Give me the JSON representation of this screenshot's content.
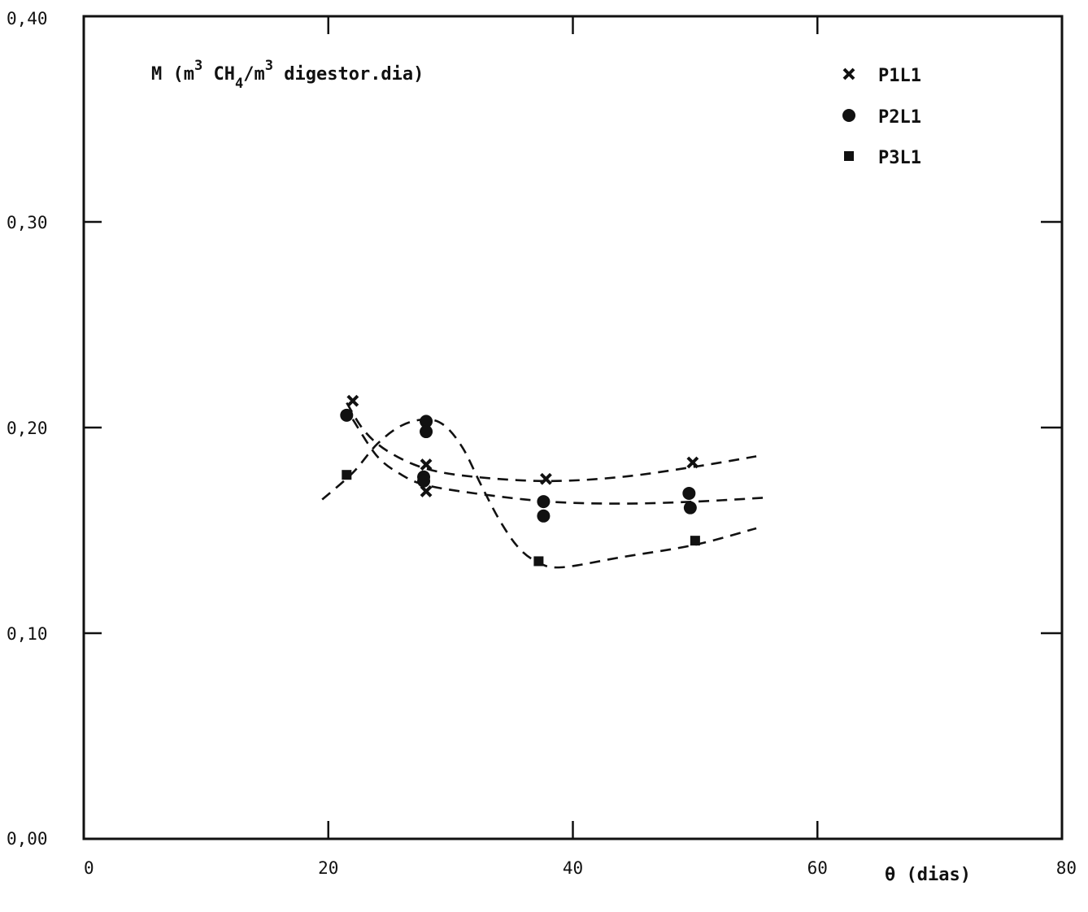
{
  "chart_data": {
    "type": "scatter",
    "title": "",
    "ylabel": "M (m3 CH4/m3 digestor.dia)",
    "ylabel_parts": {
      "prefix": "M (m",
      "sup1": "3",
      "mid": " CH",
      "sub": "4",
      "slash": "/m",
      "sup2": "3",
      "suffix": " digestor.dia)"
    },
    "xlabel": "θ (dias)",
    "xlim": [
      0,
      80
    ],
    "ylim": [
      0.0,
      0.4
    ],
    "x_ticks": [
      0,
      20,
      40,
      60,
      80
    ],
    "x_tick_labels": [
      "0",
      "20",
      "40",
      "60",
      "80"
    ],
    "y_ticks": [
      0.0,
      0.1,
      0.2,
      0.3,
      0.4
    ],
    "y_tick_labels": [
      "0,00",
      "0,10",
      "0,20",
      "0,30",
      "0,40"
    ],
    "grid": false,
    "legend_position": "top-right",
    "series": [
      {
        "name": "P1L1",
        "marker": "x",
        "color": "#111111",
        "points": [
          [
            22.0,
            0.213
          ],
          [
            28.0,
            0.182
          ],
          [
            28.0,
            0.169
          ],
          [
            37.8,
            0.175
          ],
          [
            49.8,
            0.183
          ]
        ],
        "trend": [
          [
            21.5,
            0.212
          ],
          [
            23,
            0.198
          ],
          [
            25,
            0.188
          ],
          [
            28,
            0.18
          ],
          [
            32,
            0.176
          ],
          [
            38,
            0.174
          ],
          [
            44,
            0.176
          ],
          [
            50,
            0.181
          ],
          [
            55,
            0.186
          ]
        ]
      },
      {
        "name": "P2L1",
        "marker": "circle",
        "color": "#111111",
        "points": [
          [
            21.5,
            0.206
          ],
          [
            28.0,
            0.203
          ],
          [
            28.0,
            0.198
          ],
          [
            27.8,
            0.176
          ],
          [
            27.8,
            0.174
          ],
          [
            37.6,
            0.164
          ],
          [
            37.6,
            0.157
          ],
          [
            49.5,
            0.168
          ],
          [
            49.6,
            0.161
          ]
        ],
        "trend": [
          [
            22,
            0.204
          ],
          [
            24,
            0.186
          ],
          [
            26,
            0.177
          ],
          [
            28,
            0.172
          ],
          [
            32,
            0.168
          ],
          [
            38,
            0.164
          ],
          [
            44,
            0.163
          ],
          [
            50,
            0.164
          ],
          [
            56,
            0.166
          ]
        ]
      },
      {
        "name": "P3L1",
        "marker": "square",
        "color": "#111111",
        "points": [
          [
            21.5,
            0.177
          ],
          [
            37.2,
            0.135
          ],
          [
            50.0,
            0.145
          ]
        ],
        "trend": [
          [
            19.5,
            0.165
          ],
          [
            22,
            0.178
          ],
          [
            24,
            0.192
          ],
          [
            26,
            0.201
          ],
          [
            28,
            0.204
          ],
          [
            29.5,
            0.201
          ],
          [
            31,
            0.19
          ],
          [
            32.5,
            0.172
          ],
          [
            34,
            0.155
          ],
          [
            35.5,
            0.142
          ],
          [
            37,
            0.135
          ],
          [
            39,
            0.132
          ],
          [
            44,
            0.137
          ],
          [
            50,
            0.143
          ],
          [
            55,
            0.151
          ]
        ]
      }
    ]
  }
}
